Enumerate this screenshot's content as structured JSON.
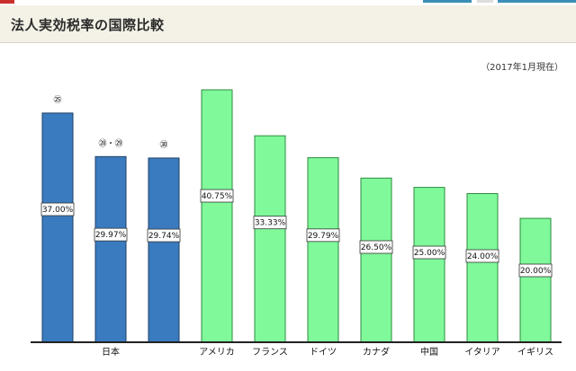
{
  "header": {
    "title": "法人実効税率の国際比較"
  },
  "note": "（2017年1月現在）",
  "colors": {
    "japan_bar": "#3a7bbf",
    "japan_bar_border": "#1d3f66",
    "other_bar": "#80f99b",
    "other_bar_border": "#2c8a3e",
    "header_bg": "#f4f1e6",
    "accent_red": "#c9302c"
  },
  "chart_data": {
    "type": "bar",
    "title": "",
    "xlabel": "",
    "ylabel": "",
    "ylim": [
      0,
      44
    ],
    "categories": [
      "日本",
      "日本",
      "日本",
      "アメリカ",
      "フランス",
      "ドイツ",
      "カナダ",
      "中国",
      "イタリア",
      "イギリス"
    ],
    "category_labels": [
      "日本",
      "アメリカ",
      "フランス",
      "ドイツ",
      "カナダ",
      "中国",
      "イタリア",
      "イギリス"
    ],
    "values": [
      37.0,
      29.97,
      29.74,
      40.75,
      33.33,
      29.79,
      26.5,
      25.0,
      24.0,
      20.0
    ],
    "value_labels": [
      "37.00%",
      "29.97%",
      "29.74%",
      "40.75%",
      "33.33%",
      "29.79%",
      "26.50%",
      "25.00%",
      "24.00%",
      "20.00%"
    ],
    "year_markers": [
      "㉕",
      "㉘・㉙",
      "㉚",
      "",
      "",
      "",
      "",
      "",
      "",
      ""
    ],
    "group": [
      "japan",
      "japan",
      "japan",
      "other",
      "other",
      "other",
      "other",
      "other",
      "other",
      "other"
    ],
    "grid": false,
    "legend": "none"
  }
}
